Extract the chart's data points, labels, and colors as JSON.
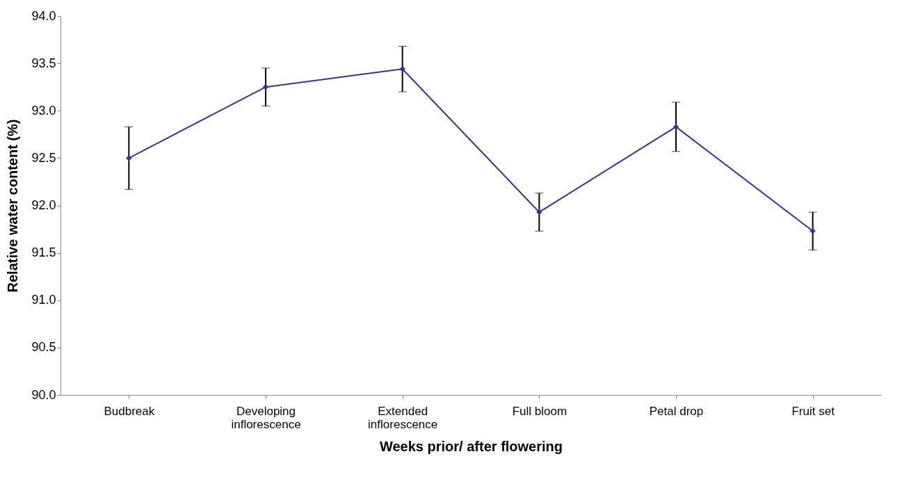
{
  "chart_data": {
    "type": "line",
    "xlabel": "Weeks prior/ after flowering",
    "ylabel": "Relative water content (%)",
    "categories": [
      "Budbreak",
      "Developing\ninflorescence",
      "Extended\ninflorescence",
      "Full bloom",
      "Petal drop",
      "Fruit set"
    ],
    "series": [
      {
        "color": "#333399",
        "values": [
          92.5,
          93.25,
          93.44,
          91.93,
          92.83,
          91.73
        ],
        "errors": [
          0.33,
          0.2,
          0.24,
          0.2,
          0.26,
          0.2
        ]
      }
    ],
    "ylim": [
      90,
      94
    ],
    "yticks": [
      {
        "value": 90,
        "label": "90.0"
      },
      {
        "value": 90.5,
        "label": "90.5"
      },
      {
        "value": 91,
        "label": "91.0"
      },
      {
        "value": 91.5,
        "label": "91.5"
      },
      {
        "value": 92,
        "label": "92.0"
      },
      {
        "value": 92.5,
        "label": "92.5"
      },
      {
        "value": 93,
        "label": "93.0"
      },
      {
        "value": 93.5,
        "label": "93.5"
      },
      {
        "value": 94,
        "label": "94.0"
      }
    ],
    "grid": false,
    "marker": "diamond",
    "line_style": "solid"
  }
}
